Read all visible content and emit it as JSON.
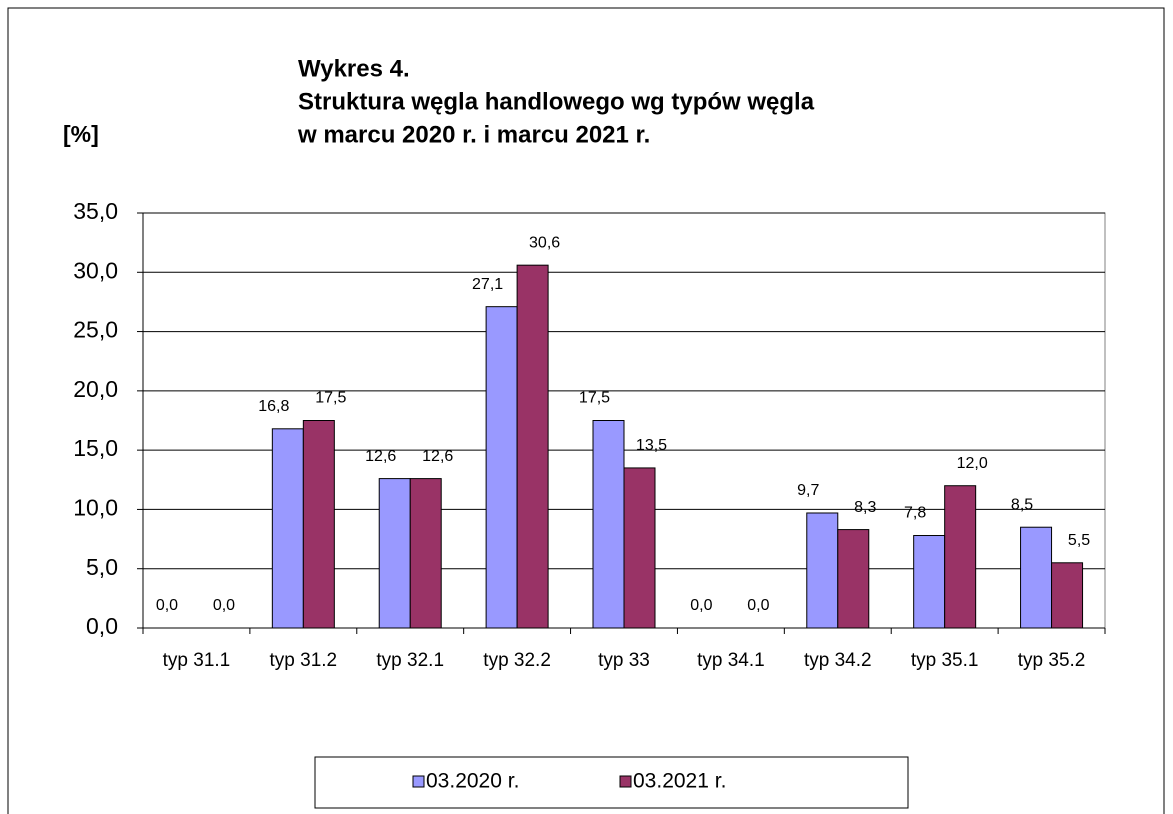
{
  "chart_data": {
    "type": "bar",
    "title": [
      "Wykres 4.",
      "Struktura węgla handlowego wg typów węgla",
      "w marcu 2020 r. i marcu 2021 r."
    ],
    "y_label": "[%]",
    "categories": [
      "typ 31.1",
      "typ 31.2",
      "typ 32.1",
      "typ 32.2",
      "typ 33",
      "typ 34.1",
      "typ 34.2",
      "typ 35.1",
      "typ 35.2"
    ],
    "series": [
      {
        "name": "03.2020 r.",
        "color": "#9999ff",
        "values": [
          0,
          16.8,
          12.6,
          27.1,
          17.5,
          0,
          9.7,
          7.8,
          8.5
        ],
        "value_labels": [
          "0,0",
          "16,8",
          "12,6",
          "27,1",
          "17,5",
          "0,0",
          "9,7",
          "7,8",
          "8,5"
        ]
      },
      {
        "name": "03.2021 r.",
        "color": "#993366",
        "values": [
          0,
          17.5,
          12.6,
          30.6,
          13.5,
          0,
          8.3,
          12.0,
          5.5
        ],
        "value_labels": [
          "0,0",
          "17,5",
          "12,6",
          "30,6",
          "13,5",
          "0,0",
          "8,3",
          "12,0",
          "5,5"
        ]
      }
    ],
    "ylim": [
      0,
      35
    ],
    "yticks": [
      {
        "value": 0,
        "label": "0,0"
      },
      {
        "value": 5,
        "label": "5,0"
      },
      {
        "value": 10,
        "label": "10,0"
      },
      {
        "value": 15,
        "label": "15,0"
      },
      {
        "value": 20,
        "label": "20,0"
      },
      {
        "value": 25,
        "label": "25,0"
      },
      {
        "value": 30,
        "label": "30,0"
      },
      {
        "value": 35,
        "label": "35,0"
      }
    ],
    "grid": true,
    "legend": "bottom"
  }
}
